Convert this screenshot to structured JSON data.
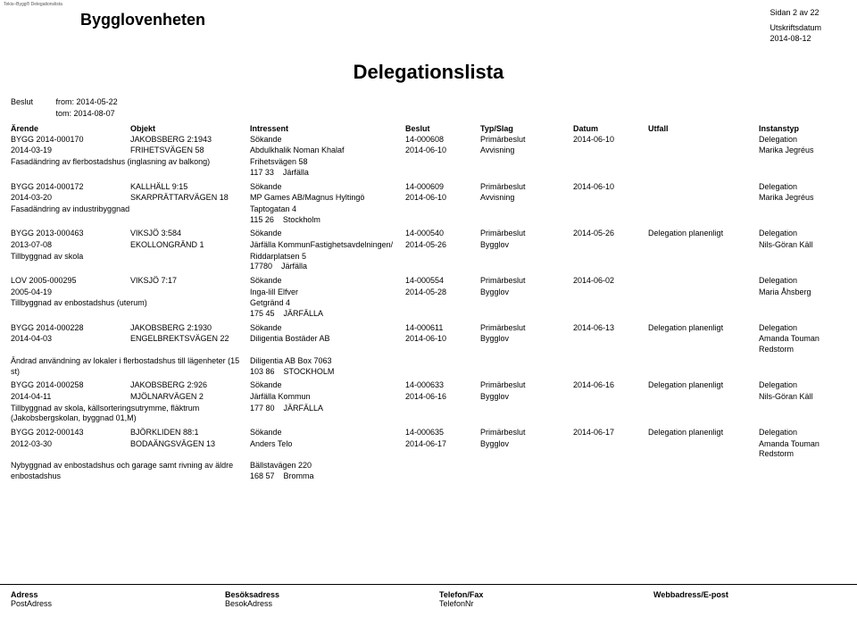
{
  "meta": {
    "top_left_tiny": "Tekis–Bygg® Delegationslista",
    "page_label": "Sidan 2 av 22",
    "print_label": "Utskriftsdatum",
    "print_date": "2014-08-12",
    "department": "Bygglovenheten",
    "title": "Delegationslista",
    "beslut_label": "Beslut",
    "from_label": "from:",
    "from_date": "2014-05-22",
    "tom_label": "tom:",
    "tom_date": "2014-08-07"
  },
  "headers": {
    "arende": "Ärende",
    "objekt": "Objekt",
    "intressent": "Intressent",
    "beslut": "Beslut",
    "typslag": "Typ/Slag",
    "datum": "Datum",
    "utfall": "Utfall",
    "instanstyp": "Instanstyp"
  },
  "cases": [
    {
      "r1": [
        "BYGG 2014-000170",
        "JAKOBSBERG 2:1943",
        "Sökande",
        "14-000608",
        "Primärbeslut",
        "2014-06-10",
        "",
        "Delegation"
      ],
      "r2": [
        "2014-03-19",
        "FRIHETSVÄGEN 58",
        "Abdulkhalik Noman Khalaf",
        "2014-06-10",
        "Avvisning",
        "",
        "",
        "Marika Jegréus"
      ],
      "desc": "Fasadändring av flerbostadshus (inglasning av balkong)",
      "addr1": "Frihetsvägen 58",
      "addr2": "117 33          Järfälla"
    },
    {
      "r1": [
        "BYGG 2014-000172",
        "KALLHÄLL 9:15",
        "Sökande",
        "14-000609",
        "Primärbeslut",
        "2014-06-10",
        "",
        "Delegation"
      ],
      "r2": [
        "2014-03-20",
        "SKARPRÄTTARVÄGEN 18",
        "MP Games AB/Magnus Hyltingö",
        "2014-06-10",
        "Avvisning",
        "",
        "",
        "Marika Jegréus"
      ],
      "desc": "Fasadändring av industribyggnad",
      "addr1": "Taptogatan 4",
      "addr2": "115 26          Stockholm"
    },
    {
      "r1": [
        "BYGG 2013-000463",
        "VIKSJÖ 3:584",
        "Sökande",
        "14-000540",
        "Primärbeslut",
        "2014-05-26",
        "Delegation planenligt",
        "Delegation"
      ],
      "r2": [
        "2013-07-08",
        "EKOLLONGRÄND 1",
        "Järfälla KommunFastighetsavdelningen/",
        "2014-05-26",
        "Bygglov",
        "",
        "",
        "Nils-Göran Käll"
      ],
      "desc": "Tillbyggnad av skola",
      "addr1": "Riddarplatsen 5",
      "addr2": "17780          Järfälla"
    },
    {
      "r1": [
        "LOV 2005-000295",
        "VIKSJÖ 7:17",
        "Sökande",
        "14-000554",
        "Primärbeslut",
        "2014-06-02",
        "",
        "Delegation"
      ],
      "r2": [
        "2005-04-19",
        "",
        "Inga-lill Elfver",
        "2014-05-28",
        "Bygglov",
        "",
        "",
        "Maria Åhsberg"
      ],
      "desc": "Tillbyggnad av enbostadshus (uterum)",
      "addr1": "Getgränd 4",
      "addr2": "175 45          JÄRFÄLLA"
    },
    {
      "r1": [
        "BYGG 2014-000228",
        "JAKOBSBERG 2:1930",
        "Sökande",
        "14-000611",
        "Primärbeslut",
        "2014-06-13",
        "Delegation planenligt",
        "Delegation"
      ],
      "r2": [
        "2014-04-03",
        "ENGELBREKTSVÄGEN 22",
        "Diligentia Bostäder AB",
        "2014-06-10",
        "Bygglov",
        "",
        "",
        "Amanda Touman Redstorm"
      ],
      "desc": "Ändrad användning av lokaler i flerbostadshus till lägenheter (15 st)",
      "addr1": "Diligentia AB Box 7063",
      "addr2": "103 86          STOCKHOLM"
    },
    {
      "r1": [
        "BYGG 2014-000258",
        "JAKOBSBERG 2:926",
        "Sökande",
        "14-000633",
        "Primärbeslut",
        "2014-06-16",
        "Delegation planenligt",
        "Delegation"
      ],
      "r2": [
        "2014-04-11",
        "MJÖLNARVÄGEN 2",
        "Järfälla Kommun",
        "2014-06-16",
        "Bygglov",
        "",
        "",
        "Nils-Göran Käll"
      ],
      "desc": "Tillbyggnad av skola, källsorteringsutrymme, fläktrum (Jakobsbergskolan, byggnad 01,M)",
      "addr1": "",
      "addr2": "177 80          JÄRFÄLLA"
    },
    {
      "r1": [
        "BYGG 2012-000143",
        "BJÖRKLIDEN 88:1",
        "Sökande",
        "14-000635",
        "Primärbeslut",
        "2014-06-17",
        "Delegation planenligt",
        "Delegation"
      ],
      "r2": [
        "2012-03-30",
        "BODAÄNGSVÄGEN 13",
        "Anders  Telo",
        "2014-06-17",
        "Bygglov",
        "",
        "",
        "Amanda Touman Redstorm"
      ],
      "desc": "Nybyggnad av enbostadshus och garage samt rivning av äldre enbostadshus",
      "addr1": "Bällstavägen 220",
      "addr2": "168 57          Bromma"
    }
  ],
  "footer": {
    "c1a": "Adress",
    "c1b": "PostAdress",
    "c2a": "Besöksadress",
    "c2b": "BesokAdress",
    "c3a": "Telefon/Fax",
    "c3b": "TelefonNr",
    "c4a": "Webbadress/E-post",
    "c4b": ""
  }
}
